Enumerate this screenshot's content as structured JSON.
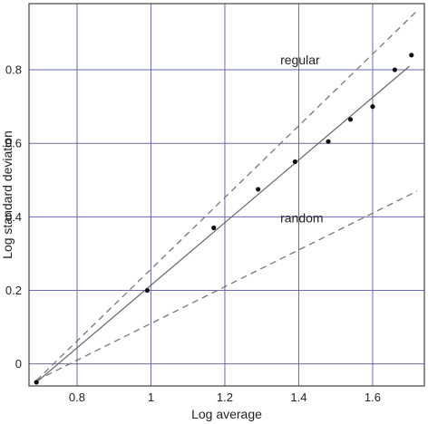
{
  "chart_data": {
    "type": "scatter",
    "xlabel": "Log average",
    "ylabel": "Log standard deviation",
    "xlim": [
      0.67,
      1.74
    ],
    "ylim": [
      -0.06,
      0.98
    ],
    "xticks": [
      0.8,
      1.0,
      1.2,
      1.4,
      1.6
    ],
    "xtick_labels": [
      "0.8",
      "1",
      "1.2",
      "1.4",
      "1.6"
    ],
    "yticks": [
      0.0,
      0.2,
      0.4,
      0.6,
      0.8
    ],
    "ytick_labels": [
      "0",
      "0.2",
      "0.4",
      "0.6",
      "0.8"
    ],
    "grid": true,
    "grid_color": "#6a6aa8",
    "points": [
      {
        "x": 0.69,
        "y": -0.05
      },
      {
        "x": 0.99,
        "y": 0.2
      },
      {
        "x": 1.17,
        "y": 0.37
      },
      {
        "x": 1.29,
        "y": 0.475
      },
      {
        "x": 1.39,
        "y": 0.55
      },
      {
        "x": 1.48,
        "y": 0.605
      },
      {
        "x": 1.54,
        "y": 0.665
      },
      {
        "x": 1.6,
        "y": 0.7
      },
      {
        "x": 1.66,
        "y": 0.8
      },
      {
        "x": 1.705,
        "y": 0.84
      }
    ],
    "fit_line": {
      "style": "solid",
      "from": [
        0.69,
        -0.05
      ],
      "to": [
        1.7,
        0.81
      ]
    },
    "reference_lines": [
      {
        "label": "regular",
        "style": "dashed",
        "from": [
          0.69,
          -0.045
        ],
        "to": [
          1.72,
          0.96
        ]
      },
      {
        "label": "random",
        "style": "dashed",
        "from": [
          0.69,
          -0.045
        ],
        "to": [
          1.72,
          0.47
        ]
      }
    ],
    "annotations": [
      {
        "text": "regular",
        "x": 1.35,
        "y": 0.815
      },
      {
        "text": "random",
        "x": 1.35,
        "y": 0.385
      }
    ]
  }
}
